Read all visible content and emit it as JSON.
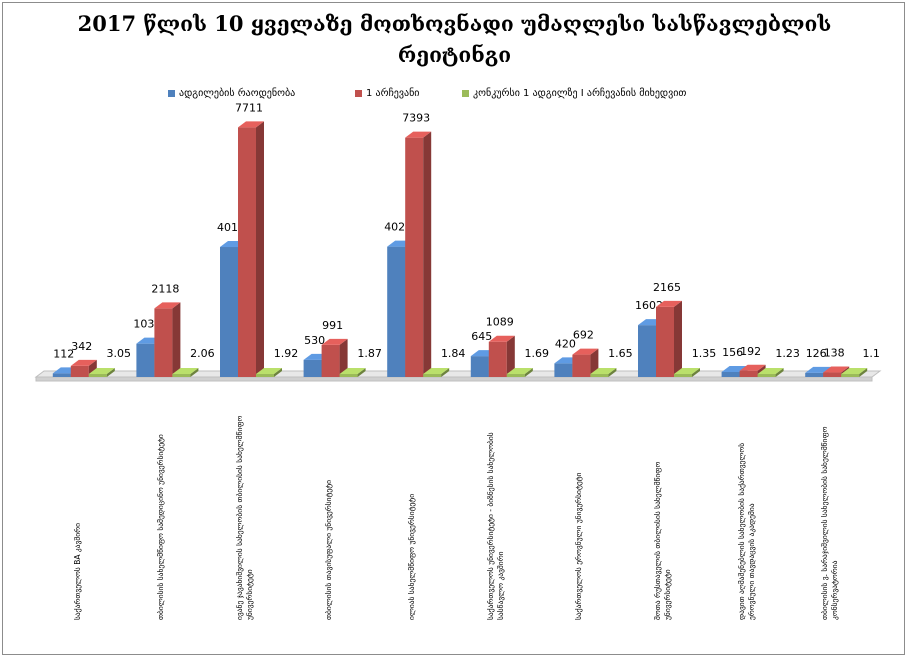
{
  "chart_data": {
    "type": "bar",
    "title_lines": [
      "2017 წლის 10 ყველაზე მოთხოვნადი უმაღლესი სასწავლებლის",
      "რეიტინგი"
    ],
    "categories": [
      [
        "საქართველოს BA კავშირი"
      ],
      [
        "თბილისის სახელმწიფო სამედიცინო უნივერსიტეტი"
      ],
      [
        "ივანე ჯავახიშვილის სახელობის თბილისის სახელმწიფო",
        "უნივერსიტეტი"
      ],
      [
        "თბილისის თავისუფალი უნივერსიტეტი"
      ],
      [
        "ილიას სახელმწიფო უნივერსიტეტი"
      ],
      [
        "საქართველოს უნივერსიტეტი - ბიზნესის სახელობის",
        "სასწავლო კავშირი"
      ],
      [
        "საქართველოს ეროვნული უნივერსიტეტი"
      ],
      [
        "შოთა რუსთაველის თბილისის სახელმწიფო",
        "უნივერსიტეტი"
      ],
      [
        "დავით აღმაშენებლის სახელობის საქართველოს",
        "ეროვნული თავდაცვის აკადემია"
      ],
      [
        "თბილისის ვ. სარაჯიშვილის სახელობის სახელმწიფო",
        "კონსერვატორია"
      ]
    ],
    "series": [
      {
        "name": "ადგილების რაოდენობა",
        "color": "#4f81bd",
        "values": [
          112,
          1030,
          4015,
          530,
          4027,
          645,
          420,
          1602,
          156,
          126
        ]
      },
      {
        "name": "1 არჩევანი",
        "color": "#c0504d",
        "values": [
          342,
          2118,
          7711,
          991,
          7393,
          1089,
          692,
          2165,
          192,
          138
        ]
      },
      {
        "name": "კონკურსი 1 ადგილზე I არჩევანის მიხედვით",
        "color": "#9bbb59",
        "values": [
          3.05,
          2.06,
          1.92,
          1.87,
          1.84,
          1.69,
          1.65,
          1.35,
          1.23,
          1.1
        ]
      }
    ],
    "value_labels": [
      [
        "112",
        "342",
        "3.05"
      ],
      [
        "1030",
        "2118",
        "2.06"
      ],
      [
        "4015",
        "7711",
        "1.92"
      ],
      [
        "530",
        "991",
        "1.87"
      ],
      [
        "4027",
        "7393",
        "1.84"
      ],
      [
        "645",
        "1089",
        "1.69"
      ],
      [
        "420",
        "692",
        "1.65"
      ],
      [
        "1602",
        "2165",
        "1.35"
      ],
      [
        "156",
        "192",
        "1.23"
      ],
      [
        "126",
        "138",
        "1.1"
      ]
    ],
    "ylim": [
      0,
      8000
    ],
    "grid": false,
    "legend_position": "top",
    "chart_style": "3d-clustered-column"
  }
}
